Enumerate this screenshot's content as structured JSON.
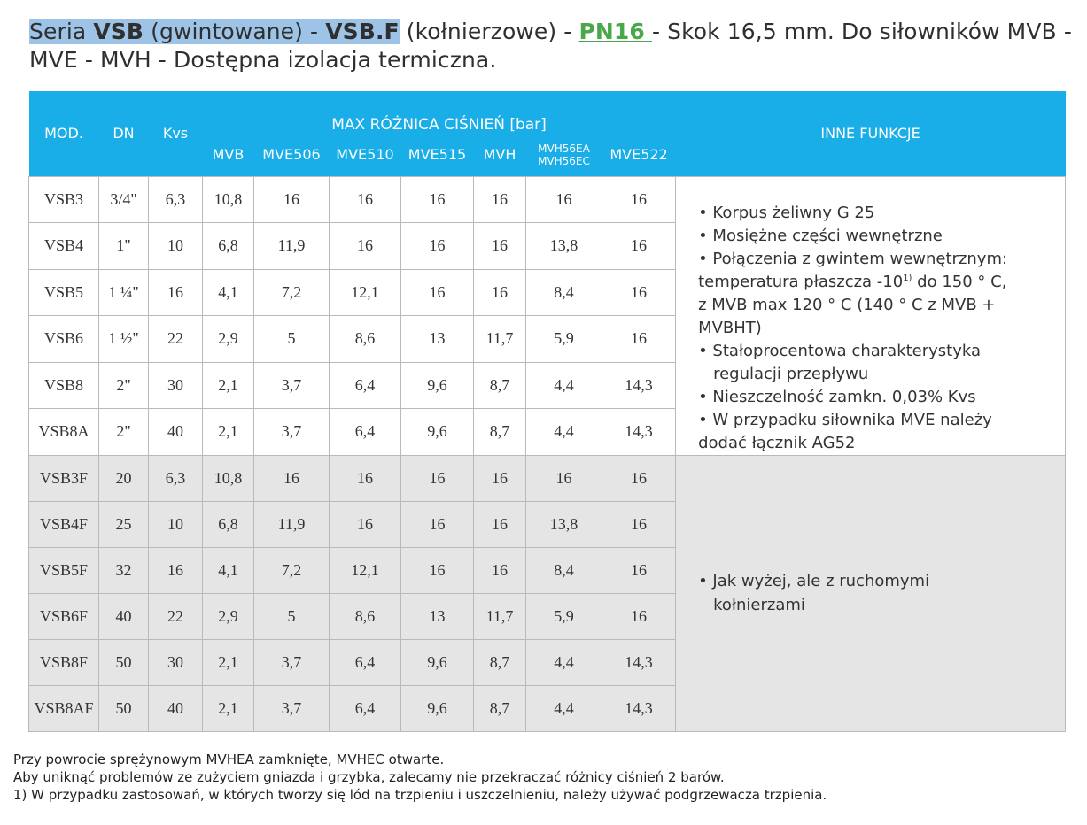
{
  "title": {
    "part1": "Seria ",
    "vsb": "VSB",
    "part2": " (gwintowane) - ",
    "vsbf": "VSB.F",
    "part3": " (kołnierzowe) - ",
    "pn": "PN16",
    "part4": " - Skok 16,5 mm. Do siłowników MVB - MVE - MVH - Dostępna izolacja termiczna."
  },
  "table": {
    "headers": {
      "mod": "MOD.",
      "dn": "DN",
      "kvs": "Kvs",
      "max_diff": "MAX RÓŻNICA CIŚNIEŃ [bar]",
      "mvb": "MVB",
      "mve506": "MVE506",
      "mve510": "MVE510",
      "mve515": "MVE515",
      "mvh": "MVH",
      "mvh56ea": "MVH56EA",
      "mvh56ec": "MVH56EC",
      "mve522": "MVE522",
      "other": "INNE FUNKCJE"
    },
    "rows": [
      [
        "VSB3",
        "3/4\"",
        "6,3",
        "10,8",
        "16",
        "16",
        "16",
        "16",
        "16",
        "16"
      ],
      [
        "VSB4",
        "1\"",
        "10",
        "6,8",
        "11,9",
        "16",
        "16",
        "16",
        "13,8",
        "16"
      ],
      [
        "VSB5",
        "1 ¼\"",
        "16",
        "4,1",
        "7,2",
        "12,1",
        "16",
        "16",
        "8,4",
        "16"
      ],
      [
        "VSB6",
        "1 ½\"",
        "22",
        "2,9",
        "5",
        "8,6",
        "13",
        "11,7",
        "5,9",
        "16"
      ],
      [
        "VSB8",
        "2\"",
        "30",
        "2,1",
        "3,7",
        "6,4",
        "9,6",
        "8,7",
        "4,4",
        "14,3"
      ],
      [
        "VSB8A",
        "2\"",
        "40",
        "2,1",
        "3,7",
        "6,4",
        "9,6",
        "8,7",
        "4,4",
        "14,3"
      ],
      [
        "VSB3F",
        "20",
        "6,3",
        "10,8",
        "16",
        "16",
        "16",
        "16",
        "16",
        "16"
      ],
      [
        "VSB4F",
        "25",
        "10",
        "6,8",
        "11,9",
        "16",
        "16",
        "16",
        "13,8",
        "16"
      ],
      [
        "VSB5F",
        "32",
        "16",
        "4,1",
        "7,2",
        "12,1",
        "16",
        "16",
        "8,4",
        "16"
      ],
      [
        "VSB6F",
        "40",
        "22",
        "2,9",
        "5",
        "8,6",
        "13",
        "11,7",
        "5,9",
        "16"
      ],
      [
        "VSB8F",
        "50",
        "30",
        "2,1",
        "3,7",
        "6,4",
        "9,6",
        "8,7",
        "4,4",
        "14,3"
      ],
      [
        "VSB8AF",
        "50",
        "40",
        "2,1",
        "3,7",
        "6,4",
        "9,6",
        "8,7",
        "4,4",
        "14,3"
      ]
    ],
    "notes_threaded": {
      "l1": "• Korpus żeliwny G 25",
      "l2": "• Mosiężne części wewnętrzne",
      "l3": "• Połączenia z gwintem wewnętrznym:",
      "l4a": "temperatura płaszcza -10",
      "l4sup": "1)",
      "l4b": " do 150 ° C,",
      "l5": "z MVB max 120 ° C (140 ° C z MVB +",
      "l6": "MVBHT)",
      "l7": "• Stałoprocentowa charakterystyka",
      "l8": "regulacji przepływu",
      "l9": "• Nieszczelność zamkn.  0,03% Kvs",
      "l10": "• W przypadku siłownika MVE należy",
      "l11": "dodać łącznik AG52"
    },
    "notes_flanged": {
      "l1": "• Jak wyżej, ale z ruchomymi",
      "l2": "kołnierzami"
    }
  },
  "footer": {
    "line1": "Przy powrocie sprężynowym MVHEA zamknięte, MVHEC otwarte.",
    "line2": "Aby uniknąć problemów ze zużyciem gniazda i grzybka, zalecamy nie przekraczać różnicy ciśnień 2 barów.",
    "line3": "1) W przypadku zastosowań, w których tworzy się lód na trzpieniu i uszczelnieniu, należy używać podgrzewacza trzpienia."
  }
}
